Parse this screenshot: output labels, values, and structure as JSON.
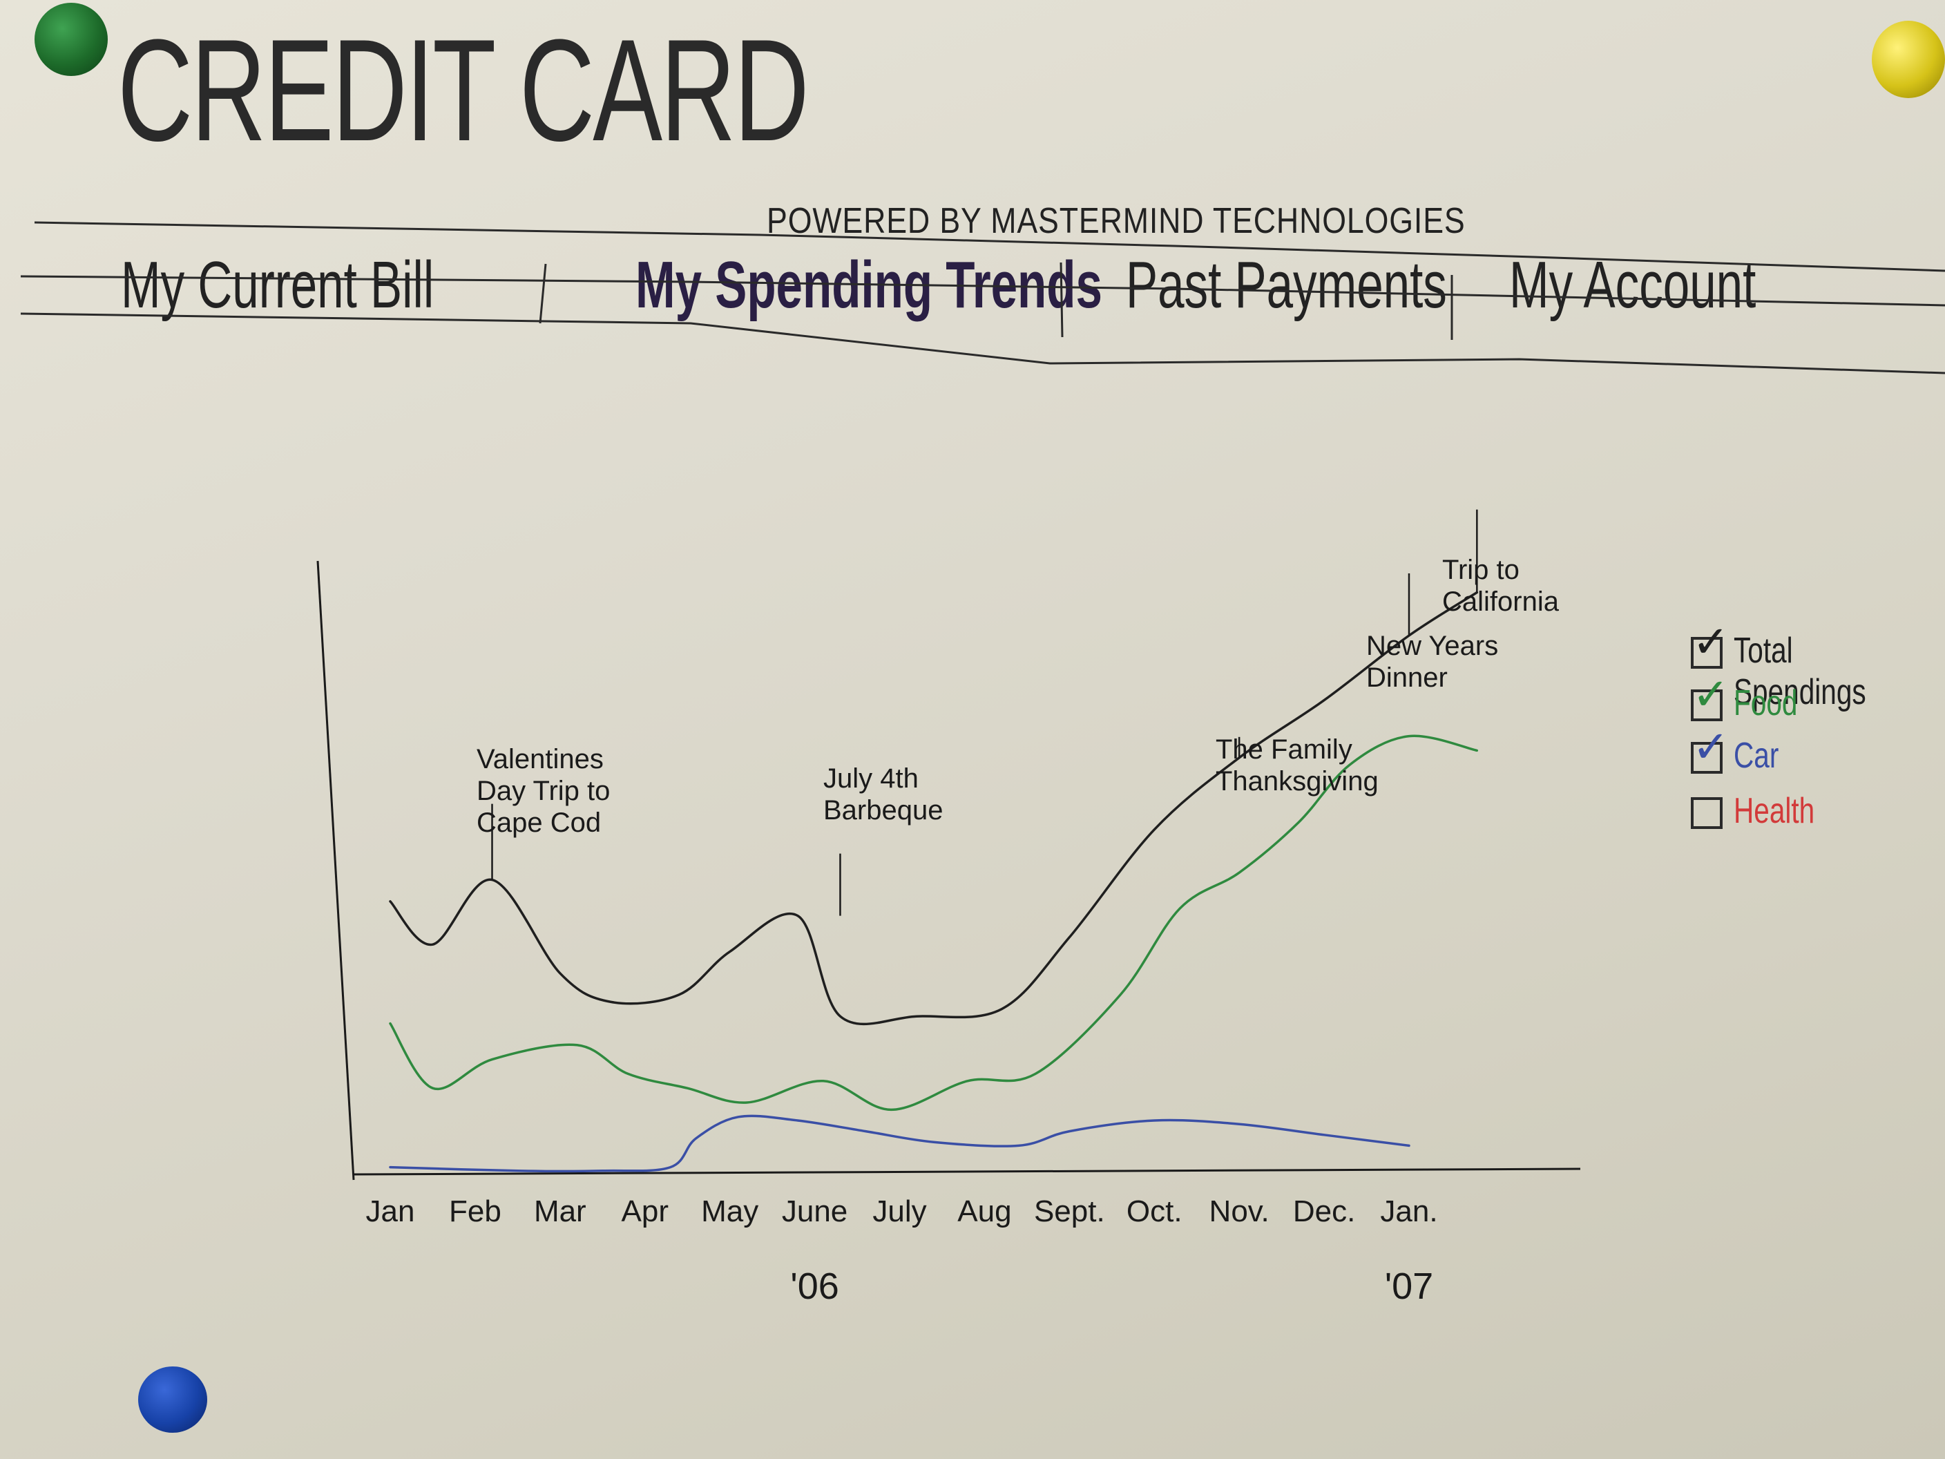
{
  "header": {
    "title": "CREDIT CARD",
    "powered_by": "POWERED BY MASTERMIND TECHNOLOGIES"
  },
  "nav": {
    "items": [
      {
        "label": "My Current Bill",
        "active": false
      },
      {
        "label": "My Spending Trends",
        "active": true
      },
      {
        "label": "Past Payments",
        "active": false
      },
      {
        "label": "My Account",
        "active": false
      }
    ]
  },
  "chart_data": {
    "type": "line",
    "x": [
      "Jan",
      "Feb",
      "Mar",
      "Apr",
      "May",
      "June",
      "July",
      "Aug",
      "Sept.",
      "Oct.",
      "Nov.",
      "Dec.",
      "Jan."
    ],
    "year_labels": [
      "'06",
      "'07"
    ],
    "ylim": [
      0,
      100
    ],
    "grid": false,
    "legend_position": "right",
    "series": [
      {
        "name": "Total Spendings",
        "color": "#1f1f1f",
        "checked": true,
        "x": [
          0,
          0.5,
          1.2,
          2.0,
          2.6,
          3.4,
          4.0,
          4.8,
          5.3,
          6.2,
          7.2,
          8.0,
          9.0,
          10.0,
          11.0,
          12.0,
          12.8
        ],
        "values": [
          38,
          32,
          41,
          28,
          24,
          25,
          31,
          36,
          22,
          22,
          23,
          33,
          48,
          58,
          66,
          75,
          81
        ]
      },
      {
        "name": "Food",
        "color": "#2f8a3f",
        "checked": true,
        "x": [
          0,
          0.5,
          1.2,
          2.2,
          2.8,
          3.5,
          4.2,
          5.1,
          5.9,
          6.8,
          7.6,
          8.6,
          9.3,
          10.0,
          10.7,
          11.3,
          12.0,
          12.8
        ],
        "values": [
          21,
          12,
          16,
          18,
          14,
          12,
          10,
          13,
          9,
          13,
          14,
          25,
          37,
          42,
          49,
          57,
          61,
          59
        ]
      },
      {
        "name": "Car",
        "color": "#3a4fa6",
        "checked": true,
        "x": [
          0,
          1.5,
          2.5,
          3.3,
          3.6,
          4.1,
          4.8,
          5.6,
          6.4,
          7.4,
          8.0,
          9.0,
          10.0,
          11.0,
          12.0
        ],
        "values": [
          1,
          0.5,
          0.5,
          1,
          5,
          8,
          7.5,
          6,
          4.5,
          4,
          6,
          7.5,
          7,
          5.5,
          4
        ]
      },
      {
        "name": "Health",
        "color": "#d23a3a",
        "checked": false,
        "x": [],
        "values": []
      }
    ],
    "annotations": [
      {
        "text": "Valentines Day Trip to Cape Cod",
        "x": 1.2,
        "y": 41
      },
      {
        "text": "July 4th Barbeque",
        "x": 5.3,
        "y": 36
      },
      {
        "text": "The Family Thanksgiving",
        "x": 10.0,
        "y": 58
      },
      {
        "text": "New Years Dinner",
        "x": 12.0,
        "y": 75
      },
      {
        "text": "Trip to California",
        "x": 12.8,
        "y": 81
      }
    ]
  }
}
